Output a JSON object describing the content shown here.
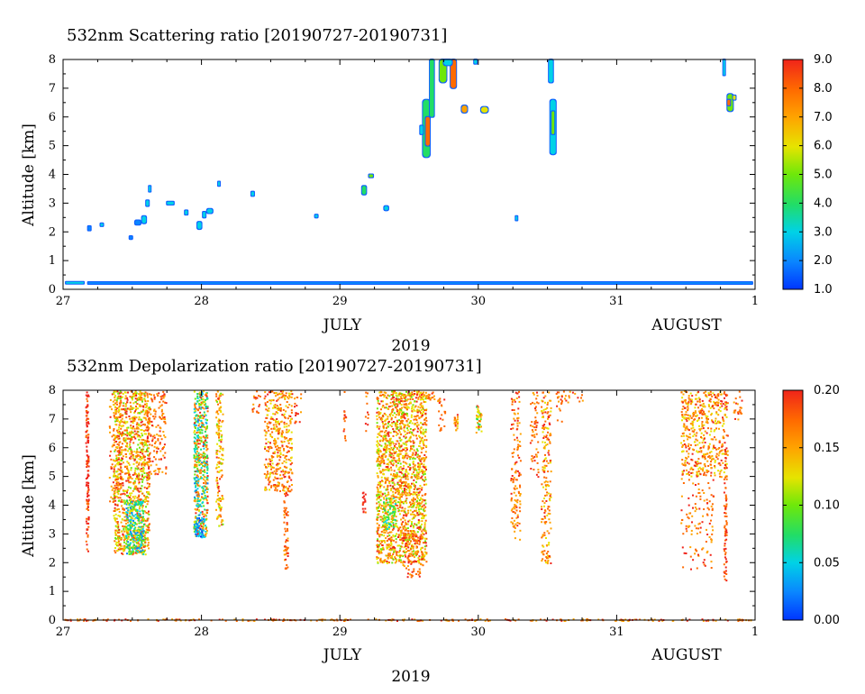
{
  "chart_data": [
    {
      "type": "heatmap",
      "title": "532nm Scattering ratio [20190727-20190731]",
      "ylabel": "Altitude [km]",
      "xlabel_month_left": "JULY",
      "xlabel_month_right": "AUGUST",
      "xlabel_year": "2019",
      "x_ticks": [
        "27",
        "28",
        "29",
        "30",
        "31",
        "1"
      ],
      "y_ticks": [
        "0",
        "1",
        "2",
        "3",
        "4",
        "5",
        "6",
        "7",
        "8"
      ],
      "xlim": [
        27,
        32
      ],
      "ylim": [
        0,
        8
      ],
      "colorbar": {
        "range": [
          1.0,
          9.0
        ],
        "ticks": [
          "1.0",
          "2.0",
          "3.0",
          "4.0",
          "5.0",
          "6.0",
          "7.0",
          "8.0",
          "9.0"
        ]
      },
      "features": [
        {
          "x": 27.02,
          "y0": 0.22,
          "y1": 0.26,
          "w": 0.13,
          "v": 2.5
        },
        {
          "x": 27.18,
          "y0": 0.2,
          "y1": 0.25,
          "w": 4.8,
          "v": 2.3
        },
        {
          "x": 27.18,
          "y0": 2.05,
          "y1": 2.2,
          "w": 0.02,
          "v": 2.0
        },
        {
          "x": 27.27,
          "y0": 2.2,
          "y1": 2.3,
          "w": 0.02,
          "v": 2.5
        },
        {
          "x": 27.48,
          "y0": 1.75,
          "y1": 1.85,
          "w": 0.02,
          "v": 2.0
        },
        {
          "x": 27.52,
          "y0": 2.25,
          "y1": 2.4,
          "w": 0.04,
          "v": 2.2
        },
        {
          "x": 27.57,
          "y0": 2.3,
          "y1": 2.55,
          "w": 0.03,
          "v": 2.5
        },
        {
          "x": 27.6,
          "y0": 2.9,
          "y1": 3.1,
          "w": 0.02,
          "v": 2.5
        },
        {
          "x": 27.62,
          "y0": 3.4,
          "y1": 3.6,
          "w": 0.01,
          "v": 2.5
        },
        {
          "x": 27.75,
          "y0": 2.95,
          "y1": 3.05,
          "w": 0.05,
          "v": 3.0
        },
        {
          "x": 27.88,
          "y0": 2.6,
          "y1": 2.75,
          "w": 0.02,
          "v": 2.5
        },
        {
          "x": 27.97,
          "y0": 2.1,
          "y1": 2.35,
          "w": 0.03,
          "v": 2.5
        },
        {
          "x": 28.01,
          "y0": 2.5,
          "y1": 2.7,
          "w": 0.02,
          "v": 3.0
        },
        {
          "x": 28.04,
          "y0": 2.65,
          "y1": 2.8,
          "w": 0.04,
          "v": 2.5
        },
        {
          "x": 28.12,
          "y0": 3.6,
          "y1": 3.75,
          "w": 0.01,
          "v": 3.0
        },
        {
          "x": 28.36,
          "y0": 3.25,
          "y1": 3.4,
          "w": 0.02,
          "v": 3.0
        },
        {
          "x": 28.82,
          "y0": 2.5,
          "y1": 2.6,
          "w": 0.02,
          "v": 2.5
        },
        {
          "x": 29.16,
          "y0": 3.3,
          "y1": 3.6,
          "w": 0.03,
          "v": 3.5
        },
        {
          "x": 29.21,
          "y0": 3.9,
          "y1": 4.0,
          "w": 0.03,
          "v": 5.0
        },
        {
          "x": 29.32,
          "y0": 2.75,
          "y1": 2.9,
          "w": 0.03,
          "v": 3.0
        },
        {
          "x": 29.6,
          "y0": 4.6,
          "y1": 6.6,
          "w": 0.05,
          "v": 4.0
        },
        {
          "x": 29.62,
          "y0": 5.0,
          "y1": 6.0,
          "w": 0.03,
          "v": 8.0
        },
        {
          "x": 29.58,
          "y0": 5.4,
          "y1": 5.7,
          "w": 0.02,
          "v": 3.0
        },
        {
          "x": 29.65,
          "y0": 6.0,
          "y1": 8.0,
          "w": 0.03,
          "v": 3.5
        },
        {
          "x": 29.72,
          "y0": 7.2,
          "y1": 8.0,
          "w": 0.05,
          "v": 4.5
        },
        {
          "x": 29.8,
          "y0": 7.0,
          "y1": 8.0,
          "w": 0.04,
          "v": 7.5
        },
        {
          "x": 29.75,
          "y0": 7.8,
          "y1": 8.0,
          "w": 0.06,
          "v": 3.0
        },
        {
          "x": 29.88,
          "y0": 6.15,
          "y1": 6.4,
          "w": 0.04,
          "v": 6.5
        },
        {
          "x": 30.02,
          "y0": 6.15,
          "y1": 6.35,
          "w": 0.05,
          "v": 6.0
        },
        {
          "x": 29.97,
          "y0": 7.85,
          "y1": 8.0,
          "w": 0.02,
          "v": 3.0
        },
        {
          "x": 30.27,
          "y0": 2.4,
          "y1": 2.55,
          "w": 0.01,
          "v": 2.5
        },
        {
          "x": 30.51,
          "y0": 7.2,
          "y1": 8.0,
          "w": 0.03,
          "v": 3.0
        },
        {
          "x": 30.52,
          "y0": 4.7,
          "y1": 6.6,
          "w": 0.04,
          "v": 3.2
        },
        {
          "x": 30.53,
          "y0": 5.4,
          "y1": 6.2,
          "w": 0.02,
          "v": 5.0
        },
        {
          "x": 31.77,
          "y0": 7.45,
          "y1": 8.0,
          "w": 0.01,
          "v": 2.5
        },
        {
          "x": 31.8,
          "y0": 6.2,
          "y1": 6.8,
          "w": 0.04,
          "v": 4.5
        },
        {
          "x": 31.8,
          "y0": 6.4,
          "y1": 6.6,
          "w": 0.02,
          "v": 7.5
        },
        {
          "x": 31.84,
          "y0": 6.6,
          "y1": 6.75,
          "w": 0.02,
          "v": 5.5
        }
      ]
    },
    {
      "type": "heatmap",
      "title": "532nm Depolarization ratio [20190727-20190731]",
      "ylabel": "Altitude [km]",
      "xlabel_month_left": "JULY",
      "xlabel_month_right": "AUGUST",
      "xlabel_year": "2019",
      "x_ticks": [
        "27",
        "28",
        "29",
        "30",
        "31",
        "1"
      ],
      "y_ticks": [
        "0",
        "1",
        "2",
        "3",
        "4",
        "5",
        "6",
        "7",
        "8"
      ],
      "xlim": [
        27,
        32
      ],
      "ylim": [
        0,
        8
      ],
      "colorbar": {
        "range": [
          0.0,
          0.2
        ],
        "ticks": [
          "0.00",
          "0.05",
          "0.10",
          "0.15",
          "0.20"
        ]
      },
      "features": [
        {
          "x0": 27.16,
          "x1": 27.18,
          "y0": 2.4,
          "y1": 8.0,
          "density": 0.9,
          "vmin": 0.18,
          "vmax": 0.2
        },
        {
          "x0": 27.33,
          "x1": 27.42,
          "y0": 4.0,
          "y1": 8.0,
          "density": 0.25,
          "vmin": 0.14,
          "vmax": 0.2
        },
        {
          "x0": 27.36,
          "x1": 27.62,
          "y0": 2.3,
          "y1": 8.0,
          "density": 0.6,
          "vmin": 0.1,
          "vmax": 0.2
        },
        {
          "x0": 27.45,
          "x1": 27.58,
          "y0": 2.3,
          "y1": 4.2,
          "density": 0.7,
          "vmin": 0.02,
          "vmax": 0.12
        },
        {
          "x0": 27.6,
          "x1": 27.74,
          "y0": 5.0,
          "y1": 8.0,
          "density": 0.3,
          "vmin": 0.14,
          "vmax": 0.2
        },
        {
          "x0": 27.94,
          "x1": 28.04,
          "y0": 2.9,
          "y1": 8.0,
          "density": 0.85,
          "vmin": 0.03,
          "vmax": 0.2
        },
        {
          "x0": 27.95,
          "x1": 28.02,
          "y0": 2.9,
          "y1": 3.6,
          "density": 0.8,
          "vmin": 0.0,
          "vmax": 0.06
        },
        {
          "x0": 28.1,
          "x1": 28.15,
          "y0": 3.2,
          "y1": 8.0,
          "density": 0.5,
          "vmin": 0.1,
          "vmax": 0.2
        },
        {
          "x0": 28.36,
          "x1": 28.42,
          "y0": 7.2,
          "y1": 8.0,
          "density": 0.3,
          "vmin": 0.15,
          "vmax": 0.2
        },
        {
          "x0": 28.45,
          "x1": 28.65,
          "y0": 4.5,
          "y1": 8.0,
          "density": 0.45,
          "vmin": 0.12,
          "vmax": 0.2
        },
        {
          "x0": 28.59,
          "x1": 28.62,
          "y0": 1.8,
          "y1": 4.5,
          "density": 0.6,
          "vmin": 0.16,
          "vmax": 0.2
        },
        {
          "x0": 28.66,
          "x1": 28.72,
          "y0": 6.8,
          "y1": 8.0,
          "density": 0.2,
          "vmin": 0.15,
          "vmax": 0.2
        },
        {
          "x0": 29.02,
          "x1": 29.04,
          "y0": 6.0,
          "y1": 8.0,
          "density": 0.3,
          "vmin": 0.16,
          "vmax": 0.2
        },
        {
          "x0": 29.16,
          "x1": 29.18,
          "y0": 3.7,
          "y1": 4.5,
          "density": 0.9,
          "vmin": 0.18,
          "vmax": 0.2
        },
        {
          "x0": 29.18,
          "x1": 29.2,
          "y0": 6.5,
          "y1": 8.0,
          "density": 0.3,
          "vmin": 0.16,
          "vmax": 0.2
        },
        {
          "x0": 29.26,
          "x1": 29.62,
          "y0": 2.0,
          "y1": 8.0,
          "density": 0.65,
          "vmin": 0.1,
          "vmax": 0.2
        },
        {
          "x0": 29.31,
          "x1": 29.4,
          "y0": 3.2,
          "y1": 4.3,
          "density": 0.6,
          "vmin": 0.05,
          "vmax": 0.13
        },
        {
          "x0": 29.45,
          "x1": 29.6,
          "y0": 1.5,
          "y1": 3.0,
          "density": 0.3,
          "vmin": 0.15,
          "vmax": 0.2
        },
        {
          "x0": 29.6,
          "x1": 29.68,
          "y0": 7.6,
          "y1": 8.0,
          "density": 0.4,
          "vmin": 0.14,
          "vmax": 0.2
        },
        {
          "x0": 29.7,
          "x1": 29.76,
          "y0": 6.6,
          "y1": 7.8,
          "density": 0.25,
          "vmin": 0.15,
          "vmax": 0.2
        },
        {
          "x0": 29.82,
          "x1": 29.85,
          "y0": 6.6,
          "y1": 7.2,
          "density": 0.9,
          "vmin": 0.13,
          "vmax": 0.2
        },
        {
          "x0": 29.98,
          "x1": 30.02,
          "y0": 6.5,
          "y1": 7.5,
          "density": 0.9,
          "vmin": 0.06,
          "vmax": 0.2
        },
        {
          "x0": 30.23,
          "x1": 30.3,
          "y0": 2.8,
          "y1": 8.0,
          "density": 0.3,
          "vmin": 0.14,
          "vmax": 0.2
        },
        {
          "x0": 30.37,
          "x1": 30.43,
          "y0": 5.0,
          "y1": 8.0,
          "density": 0.25,
          "vmin": 0.15,
          "vmax": 0.2
        },
        {
          "x0": 30.45,
          "x1": 30.52,
          "y0": 2.0,
          "y1": 8.0,
          "density": 0.35,
          "vmin": 0.12,
          "vmax": 0.2
        },
        {
          "x0": 30.54,
          "x1": 30.75,
          "y0": 7.6,
          "y1": 8.0,
          "density": 0.25,
          "vmin": 0.14,
          "vmax": 0.2
        },
        {
          "x0": 30.56,
          "x1": 30.6,
          "y0": 6.8,
          "y1": 7.6,
          "density": 0.2,
          "vmin": 0.15,
          "vmax": 0.2
        },
        {
          "x0": 31.46,
          "x1": 31.8,
          "y0": 5.0,
          "y1": 8.0,
          "density": 0.4,
          "vmin": 0.12,
          "vmax": 0.2
        },
        {
          "x0": 31.46,
          "x1": 31.7,
          "y0": 1.8,
          "y1": 5.0,
          "density": 0.12,
          "vmin": 0.15,
          "vmax": 0.2
        },
        {
          "x0": 31.77,
          "x1": 31.79,
          "y0": 1.4,
          "y1": 6.0,
          "density": 0.6,
          "vmin": 0.17,
          "vmax": 0.2
        },
        {
          "x0": 31.84,
          "x1": 31.9,
          "y0": 7.0,
          "y1": 8.0,
          "density": 0.3,
          "vmin": 0.15,
          "vmax": 0.2
        },
        {
          "x0": 27.0,
          "x1": 31.98,
          "y0": 0.0,
          "y1": 0.06,
          "density": 0.7,
          "vmin": 0.14,
          "vmax": 0.2
        }
      ]
    }
  ]
}
